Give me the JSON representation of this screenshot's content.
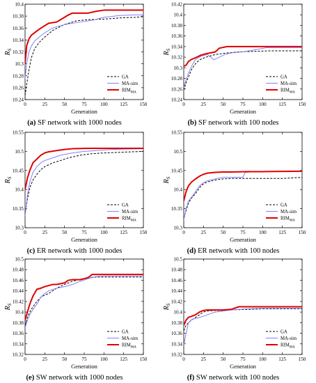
{
  "chart_data": [
    {
      "type": "line",
      "caption_letter": "(a)",
      "caption_text": " SF network with 1000 nodes",
      "ylabel": "R",
      "ylabel_sub": "S",
      "xlabel": "Generation",
      "xlim": [
        0,
        150
      ],
      "ylim": [
        10.24,
        10.4
      ],
      "xticks": [
        0,
        25,
        50,
        75,
        100,
        125,
        150
      ],
      "yticks": [
        10.24,
        10.26,
        10.28,
        10.3,
        10.32,
        10.34,
        10.36,
        10.38,
        10.4
      ],
      "ytick_labels": [
        "10.24",
        "10.26",
        "10.28",
        "10.3",
        "10.32",
        "10.34",
        "10.36",
        "10.38",
        "10.4"
      ],
      "legend_position": "bottom-right",
      "series": [
        {
          "name": "GA",
          "color": "#000000",
          "dash": "3,2",
          "width": 1,
          "x": [
            0,
            2,
            5,
            8,
            12,
            18,
            25,
            35,
            50,
            65,
            80,
            100,
            120,
            140,
            150
          ],
          "y": [
            10.247,
            10.265,
            10.29,
            10.31,
            10.325,
            10.336,
            10.345,
            10.356,
            10.366,
            10.372,
            10.374,
            10.375,
            10.377,
            10.378,
            10.379
          ]
        },
        {
          "name": "MA-sim",
          "color": "#8080ff",
          "dash": "",
          "width": 1,
          "x": [
            0,
            2,
            5,
            8,
            12,
            18,
            25,
            35,
            45,
            55,
            70,
            85,
            100,
            120,
            140,
            150
          ],
          "y": [
            10.275,
            10.3,
            10.32,
            10.33,
            10.338,
            10.345,
            10.352,
            10.36,
            10.364,
            10.367,
            10.37,
            10.373,
            10.378,
            10.381,
            10.382,
            10.382
          ]
        },
        {
          "name": "RIM",
          "name_sub": "MA",
          "color": "#e00000",
          "dash": "",
          "width": 2,
          "x": [
            0,
            2,
            5,
            8,
            12,
            18,
            25,
            30,
            40,
            45,
            55,
            60,
            80,
            90,
            100,
            150
          ],
          "y": [
            10.3,
            10.33,
            10.342,
            10.348,
            10.352,
            10.358,
            10.364,
            10.368,
            10.37,
            10.374,
            10.382,
            10.385,
            10.385,
            10.388,
            10.39,
            10.39
          ]
        }
      ]
    },
    {
      "type": "line",
      "caption_letter": "(b)",
      "caption_text": " SF network with 100 nodes",
      "ylabel": "R",
      "ylabel_sub": "S",
      "xlabel": "Generation",
      "xlim": [
        0,
        150
      ],
      "ylim": [
        10.24,
        10.42
      ],
      "xticks": [
        0,
        25,
        50,
        75,
        100,
        125,
        150
      ],
      "yticks": [
        10.24,
        10.26,
        10.28,
        10.3,
        10.32,
        10.34,
        10.36,
        10.38,
        10.4,
        10.42
      ],
      "ytick_labels": [
        "10.24",
        "10.26",
        "10.28",
        "10.3",
        "10.32",
        "10.34",
        "10.36",
        "10.38",
        "10.4",
        "10.42"
      ],
      "legend_position": "bottom-right",
      "series": [
        {
          "name": "GA",
          "color": "#000000",
          "dash": "3,2",
          "width": 1,
          "x": [
            0,
            3,
            6,
            10,
            15,
            20,
            28,
            40,
            55,
            70,
            90,
            110,
            150
          ],
          "y": [
            10.258,
            10.272,
            10.283,
            10.297,
            10.308,
            10.315,
            10.32,
            10.325,
            10.328,
            10.33,
            10.331,
            10.332,
            10.332
          ]
        },
        {
          "name": "MA-sim",
          "color": "#8080ff",
          "dash": "",
          "width": 1,
          "x": [
            0,
            3,
            6,
            10,
            15,
            22,
            30,
            38,
            45,
            52,
            60,
            75,
            90,
            105,
            150
          ],
          "y": [
            10.263,
            10.277,
            10.29,
            10.303,
            10.316,
            10.322,
            10.325,
            10.315,
            10.32,
            10.325,
            10.328,
            10.33,
            10.334,
            10.338,
            10.338
          ]
        },
        {
          "name": "RIM",
          "name_sub": "MA",
          "color": "#e00000",
          "dash": "",
          "width": 2,
          "x": [
            0,
            3,
            6,
            10,
            15,
            22,
            30,
            40,
            45,
            55,
            75,
            100,
            150
          ],
          "y": [
            10.303,
            10.305,
            10.312,
            10.316,
            10.319,
            10.324,
            10.327,
            10.33,
            10.337,
            10.34,
            10.34,
            10.34,
            10.34
          ]
        }
      ]
    },
    {
      "type": "line",
      "caption_letter": "(c)",
      "caption_text": " ER network with 1000 nodes",
      "ylabel": "R",
      "ylabel_sub": "S",
      "xlabel": "Generation",
      "xlim": [
        0,
        150
      ],
      "ylim": [
        10.3,
        10.55
      ],
      "xticks": [
        0,
        25,
        50,
        75,
        100,
        125,
        150
      ],
      "yticks": [
        10.3,
        10.35,
        10.4,
        10.45,
        10.5,
        10.55
      ],
      "ytick_labels": [
        "10.3",
        "10.35",
        "10.4",
        "10.45",
        "10.5",
        "10.55"
      ],
      "legend_position": "bottom-right",
      "series": [
        {
          "name": "GA",
          "color": "#000000",
          "dash": "3,2",
          "width": 1,
          "x": [
            0,
            3,
            6,
            10,
            15,
            20,
            25,
            35,
            45,
            55,
            70,
            85,
            100,
            125,
            150
          ],
          "y": [
            10.335,
            10.375,
            10.405,
            10.425,
            10.44,
            10.452,
            10.46,
            10.47,
            10.476,
            10.483,
            10.49,
            10.494,
            10.496,
            10.498,
            10.5
          ]
        },
        {
          "name": "MA-sim",
          "color": "#8080ff",
          "dash": "",
          "width": 1,
          "x": [
            0,
            3,
            6,
            10,
            15,
            20,
            25,
            35,
            45,
            60,
            75,
            90,
            110,
            150
          ],
          "y": [
            10.33,
            10.385,
            10.42,
            10.445,
            10.46,
            10.47,
            10.476,
            10.483,
            10.49,
            10.496,
            10.5,
            10.502,
            10.505,
            10.507
          ]
        },
        {
          "name": "RIM",
          "name_sub": "MA",
          "color": "#e00000",
          "dash": "",
          "width": 2,
          "x": [
            0,
            3,
            6,
            10,
            15,
            20,
            25,
            30,
            40,
            50,
            60,
            80,
            100,
            150
          ],
          "y": [
            10.4,
            10.43,
            10.45,
            10.47,
            10.48,
            10.49,
            10.496,
            10.499,
            10.502,
            10.505,
            10.507,
            10.508,
            10.508,
            10.508
          ]
        }
      ]
    },
    {
      "type": "line",
      "caption_letter": "(d)",
      "caption_text": " ER network with 100 nodes",
      "ylabel": "R",
      "ylabel_sub": "S",
      "xlabel": "Generation",
      "xlim": [
        0,
        150
      ],
      "ylim": [
        10.3,
        10.55
      ],
      "xticks": [
        0,
        25,
        50,
        75,
        100,
        125,
        150
      ],
      "yticks": [
        10.3,
        10.35,
        10.4,
        10.45,
        10.5,
        10.55
      ],
      "ytick_labels": [
        "10.3",
        "10.35",
        "10.4",
        "10.45",
        "10.5",
        "10.55"
      ],
      "legend_position": "bottom-right",
      "series": [
        {
          "name": "GA",
          "color": "#000000",
          "dash": "3,2",
          "width": 1,
          "x": [
            0,
            3,
            6,
            10,
            15,
            20,
            25,
            30,
            40,
            50,
            60,
            80,
            100,
            125,
            150
          ],
          "y": [
            10.325,
            10.345,
            10.365,
            10.378,
            10.39,
            10.405,
            10.415,
            10.42,
            10.425,
            10.428,
            10.429,
            10.429,
            10.429,
            10.429,
            10.432
          ]
        },
        {
          "name": "MA-sim",
          "color": "#8080ff",
          "dash": "",
          "width": 1,
          "x": [
            0,
            3,
            6,
            10,
            15,
            20,
            25,
            30,
            40,
            50,
            60,
            75,
            78,
            85,
            100,
            150
          ],
          "y": [
            10.32,
            10.35,
            10.37,
            10.38,
            10.395,
            10.41,
            10.418,
            10.423,
            10.428,
            10.432,
            10.432,
            10.432,
            10.445,
            10.446,
            10.447,
            10.448
          ]
        },
        {
          "name": "RIM",
          "name_sub": "MA",
          "color": "#e00000",
          "dash": "",
          "width": 2,
          "x": [
            0,
            3,
            6,
            10,
            15,
            20,
            25,
            30,
            40,
            50,
            60,
            80,
            100,
            150
          ],
          "y": [
            10.37,
            10.395,
            10.41,
            10.42,
            10.428,
            10.435,
            10.44,
            10.443,
            10.445,
            10.446,
            10.446,
            10.447,
            10.447,
            10.448
          ]
        }
      ]
    },
    {
      "type": "line",
      "caption_letter": "(e)",
      "caption_text": " SW network with 1000 nodes",
      "ylabel": "R",
      "ylabel_sub": "S",
      "xlabel": "Generation",
      "xlim": [
        0,
        150
      ],
      "ylim": [
        10.32,
        10.5
      ],
      "xticks": [
        0,
        25,
        50,
        75,
        100,
        125,
        150
      ],
      "yticks": [
        10.32,
        10.34,
        10.36,
        10.38,
        10.4,
        10.42,
        10.44,
        10.46,
        10.48,
        10.5
      ],
      "ytick_labels": [
        "10.32",
        "10.34",
        "10.36",
        "10.38",
        "10.4",
        "10.42",
        "10.44",
        "10.46",
        "10.48",
        "10.5"
      ],
      "legend_position": "bottom-right",
      "series": [
        {
          "name": "GA",
          "color": "#000000",
          "dash": "3,2",
          "width": 1,
          "x": [
            0,
            3,
            6,
            10,
            15,
            20,
            25,
            30,
            40,
            50,
            60,
            70,
            80,
            90,
            100,
            125,
            150
          ],
          "y": [
            10.375,
            10.39,
            10.4,
            10.41,
            10.42,
            10.428,
            10.432,
            10.435,
            10.445,
            10.452,
            10.458,
            10.462,
            10.465,
            10.466,
            10.466,
            10.466,
            10.466
          ]
        },
        {
          "name": "MA-sim",
          "color": "#8080ff",
          "dash": "",
          "width": 1,
          "x": [
            0,
            3,
            6,
            10,
            15,
            20,
            25,
            30,
            40,
            50,
            60,
            70,
            80,
            90,
            100,
            150
          ],
          "y": [
            10.37,
            10.385,
            10.395,
            10.405,
            10.415,
            10.428,
            10.435,
            10.44,
            10.445,
            10.448,
            10.452,
            10.458,
            10.463,
            10.467,
            10.468,
            10.468
          ]
        },
        {
          "name": "RIM",
          "name_sub": "MA",
          "color": "#e00000",
          "dash": "",
          "width": 2,
          "x": [
            0,
            3,
            6,
            10,
            15,
            20,
            25,
            30,
            35,
            40,
            50,
            55,
            60,
            70,
            75,
            80,
            85,
            90,
            100,
            150
          ],
          "y": [
            10.385,
            10.4,
            10.415,
            10.43,
            10.443,
            10.445,
            10.448,
            10.45,
            10.452,
            10.452,
            10.455,
            10.46,
            10.461,
            10.461,
            10.463,
            10.465,
            10.471,
            10.471,
            10.471,
            10.471
          ]
        }
      ]
    },
    {
      "type": "line",
      "caption_letter": "(f)",
      "caption_text": " SW network with 100 nodes",
      "ylabel": "R",
      "ylabel_sub": "S",
      "xlabel": "Generation",
      "xlim": [
        0,
        150
      ],
      "ylim": [
        10.32,
        10.5
      ],
      "xticks": [
        0,
        25,
        50,
        75,
        100,
        125,
        150
      ],
      "yticks": [
        10.32,
        10.34,
        10.36,
        10.38,
        10.4,
        10.42,
        10.44,
        10.46,
        10.48,
        10.5
      ],
      "ytick_labels": [
        "10.32",
        "10.34",
        "10.36",
        "10.38",
        "10.4",
        "10.42",
        "10.44",
        "10.46",
        "10.48",
        "10.5"
      ],
      "legend_position": "bottom-right",
      "series": [
        {
          "name": "GA",
          "color": "#000000",
          "dash": "3,2",
          "width": 1,
          "x": [
            0,
            3,
            6,
            10,
            15,
            20,
            25,
            30,
            40,
            50,
            60,
            80,
            100,
            150
          ],
          "y": [
            10.365,
            10.375,
            10.38,
            10.385,
            10.39,
            10.395,
            10.4,
            10.402,
            10.403,
            10.403,
            10.404,
            10.405,
            10.406,
            10.406
          ]
        },
        {
          "name": "MA-sim",
          "color": "#8080ff",
          "dash": "",
          "width": 1,
          "x": [
            0,
            3,
            6,
            10,
            15,
            20,
            25,
            30,
            40,
            50,
            60,
            80,
            100,
            150
          ],
          "y": [
            10.337,
            10.36,
            10.38,
            10.386,
            10.388,
            10.39,
            10.392,
            10.395,
            10.4,
            10.402,
            10.404,
            10.406,
            10.407,
            10.407
          ]
        },
        {
          "name": "RIM",
          "name_sub": "MA",
          "color": "#e00000",
          "dash": "",
          "width": 2,
          "x": [
            0,
            3,
            6,
            10,
            15,
            20,
            25,
            30,
            40,
            50,
            60,
            70,
            80,
            100,
            150
          ],
          "y": [
            10.375,
            10.385,
            10.39,
            10.392,
            10.395,
            10.4,
            10.403,
            10.404,
            10.404,
            10.404,
            10.405,
            10.41,
            10.41,
            10.41,
            10.41
          ]
        }
      ]
    }
  ]
}
